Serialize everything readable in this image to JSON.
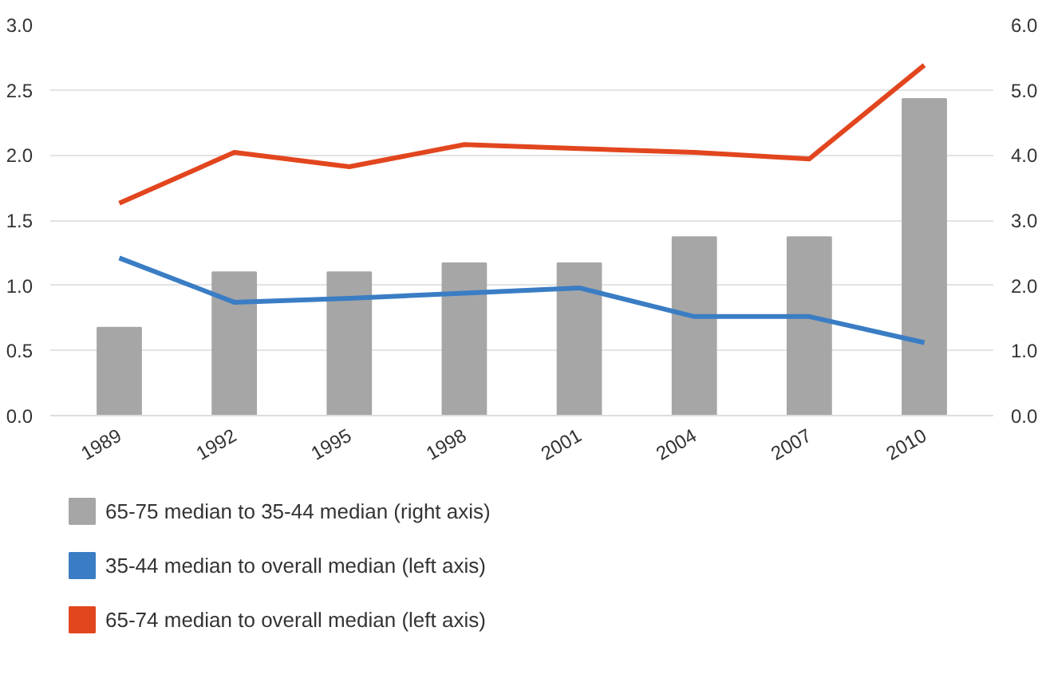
{
  "chart_data": {
    "type": "line",
    "categories": [
      "1989",
      "1992",
      "1995",
      "1998",
      "2001",
      "2004",
      "2007",
      "2010"
    ],
    "series": [
      {
        "name": "65-75 median to 35-44 median (right axis)",
        "type": "bar",
        "axis": "y2",
        "color": "#a6a6a6",
        "values": [
          1.35,
          2.2,
          2.2,
          2.34,
          2.34,
          2.74,
          2.74,
          4.86
        ]
      },
      {
        "name": "35-44 median to overall median (left axis)",
        "color": "#3a7dc4",
        "values": [
          1.21,
          0.87,
          0.9,
          0.94,
          0.98,
          0.76,
          0.76,
          0.56
        ]
      },
      {
        "name": "65-74 median to overall median (left axis)",
        "color": "#e2461e",
        "values": [
          1.63,
          2.02,
          1.91,
          2.08,
          2.05,
          2.02,
          1.97,
          2.69
        ]
      }
    ],
    "ylim": [
      0,
      3
    ],
    "yticks": [
      {
        "value": 0,
        "label": "0.0"
      },
      {
        "value": 0.5,
        "label": "0.5"
      },
      {
        "value": 1,
        "label": "1.0"
      },
      {
        "value": 1.5,
        "label": "1.5"
      },
      {
        "value": 2,
        "label": "2.0"
      },
      {
        "value": 2.5,
        "label": "2.5"
      },
      {
        "value": 3,
        "label": "3.0"
      }
    ],
    "y2lim": [
      0,
      6
    ],
    "y2ticks": [
      {
        "value": 0,
        "label": "0.0"
      },
      {
        "value": 1,
        "label": "1.0"
      },
      {
        "value": 2,
        "label": "2.0"
      },
      {
        "value": 3,
        "label": "3.0"
      },
      {
        "value": 4,
        "label": "4.0"
      },
      {
        "value": 5,
        "label": "5.0"
      },
      {
        "value": 6,
        "label": "6.0"
      }
    ],
    "grid": "y",
    "legend": "bottom"
  }
}
